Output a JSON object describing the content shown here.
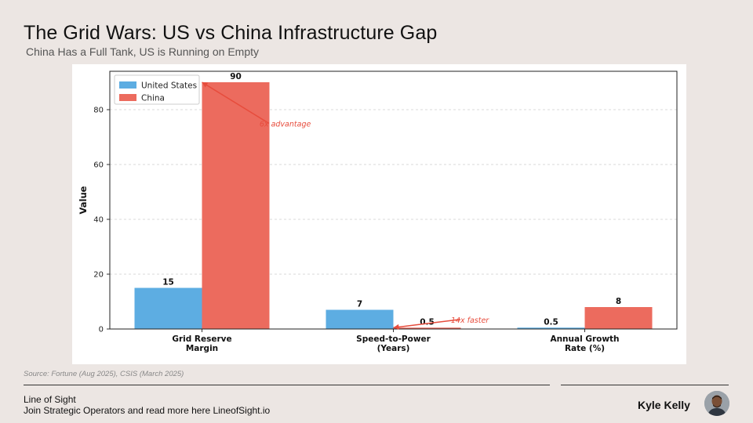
{
  "header": {
    "title": "The Grid Wars: US vs China Infrastructure Gap",
    "subtitle": "China Has a Full Tank, US is Running on Empty"
  },
  "chart_data": {
    "type": "bar",
    "categories": [
      "Grid Reserve\nMargin",
      "Speed-to-Power\n(Years)",
      "Annual Growth\nRate (%)"
    ],
    "series": [
      {
        "name": "United States",
        "values": [
          15,
          7,
          0.5
        ],
        "labels": [
          "15",
          "7",
          "0.5"
        ],
        "color": "#5dade2"
      },
      {
        "name": "China",
        "values": [
          90,
          0.5,
          8
        ],
        "labels": [
          "90",
          "0.5",
          "8"
        ],
        "color": "#ec6b5e"
      }
    ],
    "ylabel": "Value",
    "ylim": [
      0,
      94
    ],
    "yticks": [
      0,
      20,
      40,
      60,
      80
    ],
    "grid": true,
    "legend": "top-left",
    "annotations": [
      {
        "text": "6x advantage",
        "arrow_to": {
          "category": 0,
          "value": 90
        },
        "text_at": {
          "category": 0.35,
          "value": 75
        }
      },
      {
        "text": "14x faster",
        "arrow_to": {
          "category": 1,
          "value": 0.5
        },
        "text_at": {
          "category": 1.35,
          "value": 3.5
        }
      }
    ],
    "annotation_color": "#e74c3c"
  },
  "footer": {
    "source": "Source: Fortune (Aug 2025), CSIS (March 2025)",
    "brand": "Line of Sight",
    "tagline": "Join Strategic Operators and read more here LineofSight.io",
    "author": "Kyle Kelly"
  },
  "icons": {
    "avatar": "person-avatar-icon"
  }
}
